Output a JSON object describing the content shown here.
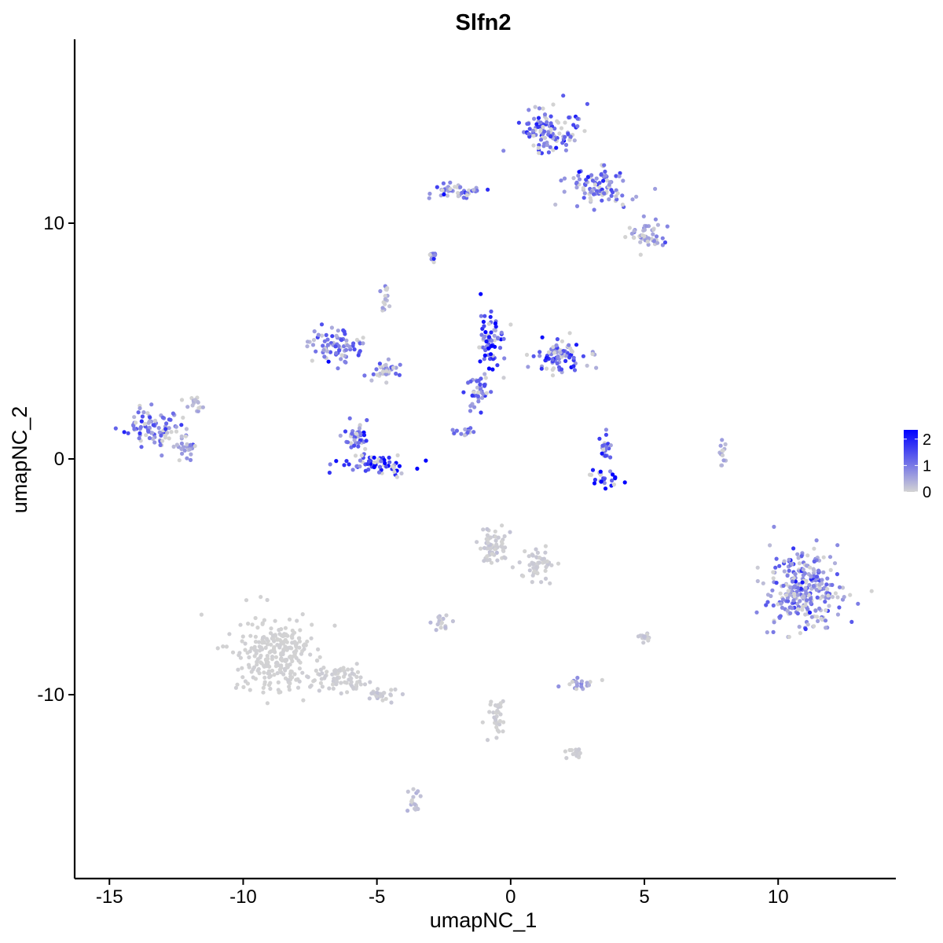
{
  "chart_data": {
    "type": "scatter",
    "title": "Slfn2",
    "xlabel": "umapNC_1",
    "ylabel": "umapNC_2",
    "xlim": [
      -16.3,
      14.4
    ],
    "ylim": [
      -17.8,
      17.8
    ],
    "x_ticks": [
      "-15",
      "-10",
      "-5",
      "0",
      "5",
      "10"
    ],
    "x_tick_values": [
      -15,
      -10,
      -5,
      0,
      5,
      10
    ],
    "y_ticks": [
      "-10",
      "0",
      "10"
    ],
    "y_tick_values": [
      -10,
      0,
      10
    ],
    "grid": false,
    "legend": {
      "position": "right",
      "type": "colorbar",
      "labels": [
        "2",
        "1",
        "0"
      ],
      "label_values": [
        2,
        1,
        0
      ],
      "range": [
        0,
        2.35
      ]
    },
    "colors": {
      "low": "#d3d3d3",
      "high": "#0000ff"
    },
    "clusters": [
      {
        "center": [
          11.0,
          -5.5
        ],
        "spread": [
          1.3,
          1.6
        ],
        "expression": 0.8
      },
      {
        "center": [
          -8.8,
          -8.3
        ],
        "spread": [
          1.3,
          1.4
        ],
        "expression": 0.02
      },
      {
        "center": [
          -6.5,
          -9.3
        ],
        "spread": [
          1.2,
          0.5
        ],
        "expression": 0.05
      },
      {
        "center": [
          -4.7,
          -10.0
        ],
        "spread": [
          0.6,
          0.3
        ],
        "expression": 0.1
      },
      {
        "center": [
          1.5,
          14.0
        ],
        "spread": [
          1.0,
          0.8
        ],
        "expression": 1.05
      },
      {
        "center": [
          3.3,
          11.5
        ],
        "spread": [
          1.0,
          0.7
        ],
        "expression": 0.95
      },
      {
        "center": [
          5.2,
          9.5
        ],
        "spread": [
          0.7,
          0.5
        ],
        "expression": 0.7
      },
      {
        "center": [
          -2.0,
          11.3
        ],
        "spread": [
          1.0,
          0.3
        ],
        "expression": 0.9
      },
      {
        "center": [
          -13.3,
          1.3
        ],
        "spread": [
          0.9,
          0.7
        ],
        "expression": 0.9
      },
      {
        "center": [
          -12.2,
          0.5
        ],
        "spread": [
          0.4,
          0.5
        ],
        "expression": 0.6
      },
      {
        "center": [
          -6.5,
          4.8
        ],
        "spread": [
          0.9,
          0.6
        ],
        "expression": 0.85
      },
      {
        "center": [
          -4.8,
          3.7
        ],
        "spread": [
          0.6,
          0.4
        ],
        "expression": 0.8
      },
      {
        "center": [
          -5.0,
          -0.2
        ],
        "spread": [
          1.2,
          0.4
        ],
        "expression": 1.5
      },
      {
        "center": [
          -5.7,
          0.9
        ],
        "spread": [
          0.4,
          0.7
        ],
        "expression": 1.1
      },
      {
        "center": [
          -0.8,
          5.0
        ],
        "spread": [
          0.5,
          1.0
        ],
        "expression": 1.5
      },
      {
        "center": [
          1.8,
          4.3
        ],
        "spread": [
          1.0,
          0.6
        ],
        "expression": 1.1
      },
      {
        "center": [
          -1.2,
          3.0
        ],
        "spread": [
          0.4,
          0.7
        ],
        "expression": 1.0
      },
      {
        "center": [
          3.6,
          -0.8
        ],
        "spread": [
          0.6,
          0.3
        ],
        "expression": 1.9
      },
      {
        "center": [
          3.5,
          0.5
        ],
        "spread": [
          0.25,
          0.6
        ],
        "expression": 1.2
      },
      {
        "center": [
          -0.6,
          -3.7
        ],
        "spread": [
          0.6,
          0.7
        ],
        "expression": 0.1
      },
      {
        "center": [
          1.0,
          -4.5
        ],
        "spread": [
          0.6,
          0.6
        ],
        "expression": 0.08
      },
      {
        "center": [
          -2.6,
          -6.9
        ],
        "spread": [
          0.4,
          0.3
        ],
        "expression": 0.15
      },
      {
        "center": [
          2.5,
          -9.6
        ],
        "spread": [
          0.7,
          0.2
        ],
        "expression": 0.5
      },
      {
        "center": [
          -0.5,
          -11.0
        ],
        "spread": [
          0.3,
          0.8
        ],
        "expression": 0.05
      },
      {
        "center": [
          2.3,
          -12.5
        ],
        "spread": [
          0.3,
          0.2
        ],
        "expression": 0.05
      },
      {
        "center": [
          -3.6,
          -14.6
        ],
        "spread": [
          0.2,
          0.6
        ],
        "expression": 0.2
      },
      {
        "center": [
          5.0,
          -7.6
        ],
        "spread": [
          0.2,
          0.2
        ],
        "expression": 0.1
      },
      {
        "center": [
          -4.6,
          6.8
        ],
        "spread": [
          0.2,
          0.5
        ],
        "expression": 0.5
      },
      {
        "center": [
          -11.8,
          2.3
        ],
        "spread": [
          0.3,
          0.3
        ],
        "expression": 0.3
      },
      {
        "center": [
          7.9,
          0.3
        ],
        "spread": [
          0.1,
          0.6
        ],
        "expression": 0.4
      },
      {
        "center": [
          -1.8,
          1.1
        ],
        "spread": [
          0.4,
          0.2
        ],
        "expression": 0.9
      },
      {
        "center": [
          -2.9,
          8.6
        ],
        "spread": [
          0.15,
          0.15
        ],
        "expression": 0.9
      }
    ]
  }
}
